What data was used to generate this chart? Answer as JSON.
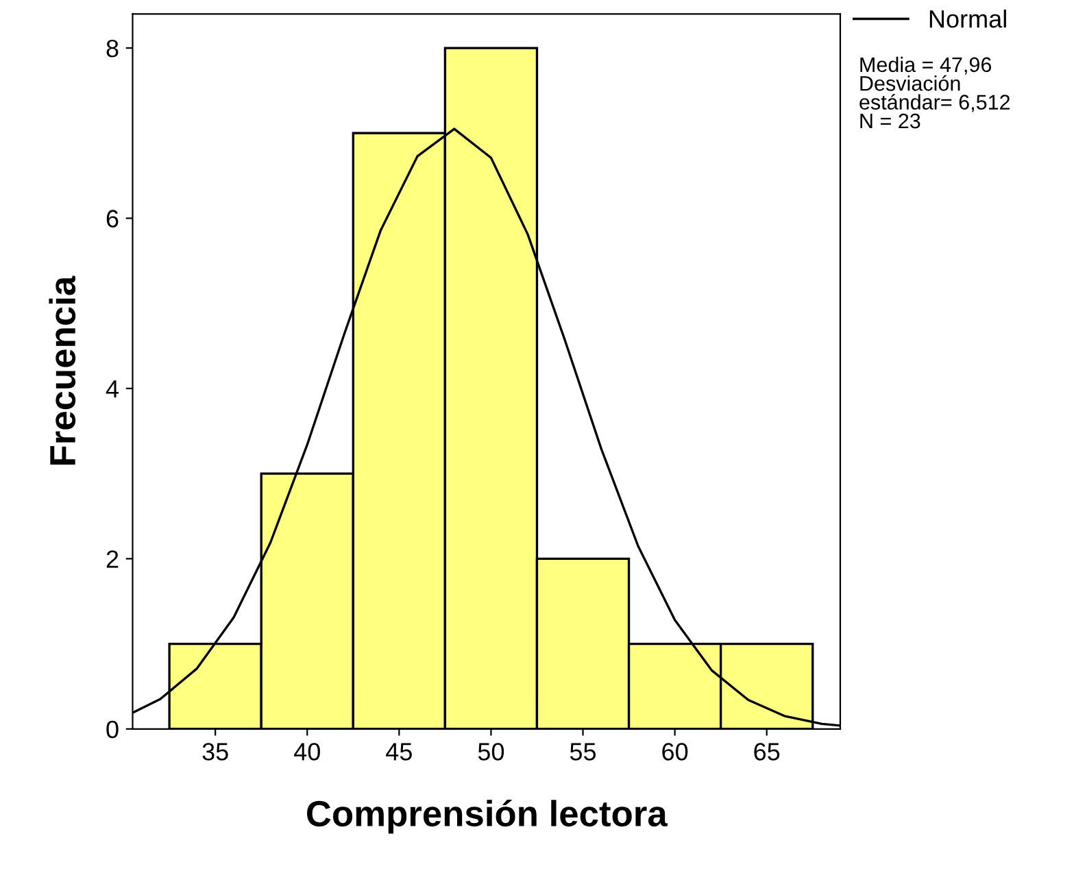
{
  "chart_data": {
    "type": "histogram",
    "xlabel": "Comprensión lectora",
    "ylabel": "Frecuencia",
    "bins": [
      32.5,
      37.5,
      42.5,
      47.5,
      52.5,
      57.5,
      62.5,
      67.5
    ],
    "values": [
      1,
      3,
      7,
      8,
      2,
      1,
      1
    ],
    "color": "#ffff80",
    "series": [
      {
        "type": "line",
        "name": "Normal",
        "color": "#000000",
        "x": [
          30.5,
          32,
          34,
          36,
          38,
          40,
          42,
          44,
          46,
          48,
          50,
          52,
          54,
          56,
          58,
          60,
          62,
          64,
          66,
          68,
          69
        ],
        "values": [
          0.19,
          0.35,
          0.71,
          1.31,
          2.19,
          3.34,
          4.63,
          5.86,
          6.73,
          7.05,
          6.71,
          5.81,
          4.58,
          3.29,
          2.15,
          1.28,
          0.69,
          0.34,
          0.15,
          0.06,
          0.04
        ]
      }
    ],
    "xlim": [
      30.5,
      69
    ],
    "ylim": [
      0,
      8.4
    ],
    "xticks": [
      35,
      40,
      45,
      50,
      55,
      60,
      65
    ],
    "yticks": [
      0,
      2,
      4,
      6,
      8
    ],
    "grid": false,
    "legend": "top right",
    "annotations": [
      "Media = 47,96\nDesviación\nestándar= 6,512\nN = 23"
    ]
  }
}
